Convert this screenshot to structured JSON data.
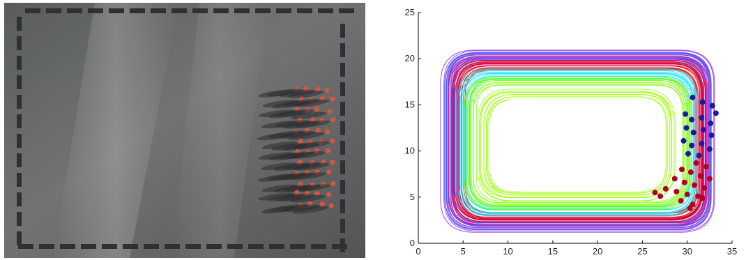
{
  "photo": {
    "description_icon": "overhead-arena-photo-icon",
    "floor_color": "#6c6e6e",
    "barrier_color": "#2e3033",
    "helmet_color": "#d6553f"
  },
  "chart_data": {
    "type": "line",
    "title": "",
    "xlabel": "",
    "ylabel": "",
    "xlim": [
      0,
      35
    ],
    "ylim": [
      0,
      25
    ],
    "xticks": [
      0,
      5,
      10,
      15,
      20,
      25,
      30,
      35
    ],
    "yticks": [
      0,
      5,
      10,
      15,
      20,
      25
    ],
    "grid": false,
    "legend": "none",
    "trajectory_bands": [
      {
        "color": "#8a2be2",
        "inner_x": [
          2.6,
          33.0
        ],
        "inner_y": [
          1.3,
          21.0
        ]
      },
      {
        "color": "#1e50ff",
        "inner_x": [
          3.0,
          32.6
        ],
        "inner_y": [
          1.6,
          20.6
        ]
      },
      {
        "color": "#ff1493",
        "inner_x": [
          3.3,
          32.4
        ],
        "inner_y": [
          1.9,
          20.2
        ]
      },
      {
        "color": "#cc0000",
        "inner_x": [
          3.8,
          32.0
        ],
        "inner_y": [
          2.3,
          19.7
        ]
      },
      {
        "color": "#00e5ff",
        "inner_x": [
          4.4,
          31.2
        ],
        "inner_y": [
          3.0,
          18.8
        ]
      },
      {
        "color": "#7cfc00",
        "inner_x": [
          5.0,
          30.5
        ],
        "inner_y": [
          3.6,
          18.1
        ]
      },
      {
        "color": "#9aff00",
        "inner_x": [
          6.6,
          28.6
        ],
        "inner_y": [
          4.6,
          16.6
        ]
      }
    ],
    "markers": {
      "blue_color": "#1a1aa0",
      "red_color": "#b00020",
      "blue_points": [
        [
          30.6,
          15.8
        ],
        [
          31.7,
          15.3
        ],
        [
          32.8,
          14.9
        ],
        [
          33.2,
          14.1
        ],
        [
          29.8,
          14.0
        ],
        [
          30.5,
          13.4
        ],
        [
          31.6,
          13.6
        ],
        [
          32.6,
          13.0
        ],
        [
          29.9,
          12.5
        ],
        [
          30.7,
          12.0
        ],
        [
          31.8,
          12.3
        ],
        [
          32.7,
          11.7
        ],
        [
          29.6,
          11.1
        ],
        [
          30.5,
          10.6
        ],
        [
          31.6,
          10.8
        ],
        [
          32.5,
          10.2
        ],
        [
          30.1,
          9.7
        ],
        [
          31.3,
          9.5
        ]
      ],
      "red_points": [
        [
          31.0,
          8.7
        ],
        [
          32.1,
          8.3
        ],
        [
          29.4,
          8.0
        ],
        [
          30.4,
          7.7
        ],
        [
          31.5,
          7.3
        ],
        [
          32.5,
          7.0
        ],
        [
          28.6,
          7.0
        ],
        [
          29.7,
          6.6
        ],
        [
          30.8,
          6.3
        ],
        [
          31.9,
          6.0
        ],
        [
          27.6,
          5.9
        ],
        [
          28.8,
          5.6
        ],
        [
          30.0,
          5.3
        ],
        [
          31.2,
          5.1
        ],
        [
          27.0,
          5.1
        ],
        [
          29.3,
          4.6
        ],
        [
          30.6,
          4.2
        ],
        [
          31.7,
          4.9
        ],
        [
          26.4,
          5.5
        ],
        [
          30.3,
          3.8
        ]
      ]
    }
  }
}
